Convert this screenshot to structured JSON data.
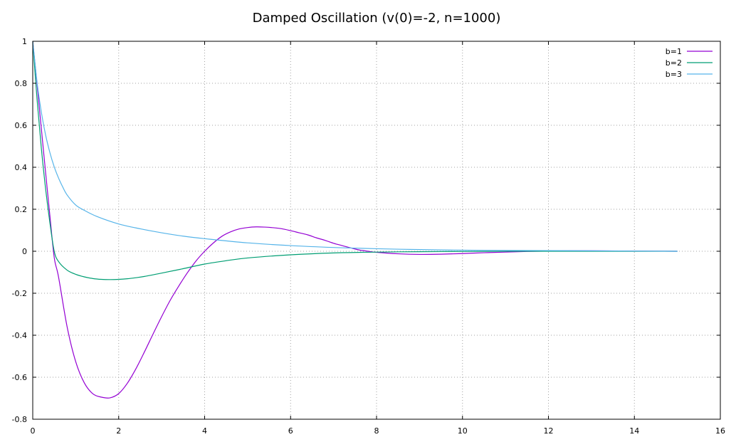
{
  "chart_data": {
    "type": "line",
    "title": "Damped Oscillation (v(0)=-2, n=1000)",
    "xlabel": "",
    "ylabel": "",
    "xlim": [
      0,
      16
    ],
    "ylim": [
      -0.8,
      1
    ],
    "xticks": [
      0,
      2,
      4,
      6,
      8,
      10,
      12,
      14,
      16
    ],
    "yticks": [
      -0.8,
      -0.6,
      -0.4,
      -0.2,
      0,
      0.2,
      0.4,
      0.6,
      0.8,
      1
    ],
    "grid": true,
    "legend_position": "top-right",
    "series": [
      {
        "name": "b=1",
        "color": "#9400d3",
        "x": [
          0,
          0.1,
          0.2,
          0.3,
          0.4,
          0.5,
          0.6,
          0.8,
          1,
          1.2,
          1.4,
          1.6,
          1.8,
          2,
          2.2,
          2.4,
          2.6,
          2.8,
          3,
          3.2,
          3.4,
          3.6,
          3.8,
          4,
          4.2,
          4.4,
          4.6,
          4.8,
          5,
          5.2,
          5.4,
          5.6,
          5.8,
          6,
          6.2,
          6.4,
          6.6,
          6.8,
          7,
          7.2,
          7.4,
          7.6,
          7.8,
          8,
          8.5,
          9,
          9.5,
          10,
          10.5,
          11,
          11.5,
          12,
          12.5,
          13,
          14,
          15
        ],
        "y": [
          1,
          0.795,
          0.584,
          0.373,
          0.167,
          -0.03,
          -0.122,
          -0.36,
          -0.526,
          -0.627,
          -0.679,
          -0.695,
          -0.698,
          -0.678,
          -0.629,
          -0.56,
          -0.479,
          -0.394,
          -0.311,
          -0.233,
          -0.165,
          -0.102,
          -0.046,
          0.0,
          0.039,
          0.071,
          0.092,
          0.106,
          0.113,
          0.116,
          0.115,
          0.112,
          0.107,
          0.098,
          0.088,
          0.078,
          0.064,
          0.052,
          0.038,
          0.027,
          0.016,
          0.006,
          0.0,
          -0.005,
          -0.012,
          -0.015,
          -0.014,
          -0.011,
          -0.007,
          -0.004,
          -0.001,
          0.001,
          0.002,
          0.002,
          0.001,
          0.0
        ]
      },
      {
        "name": "b=2",
        "color": "#009e73",
        "x": [
          0,
          0.1,
          0.2,
          0.3,
          0.4,
          0.5,
          0.6,
          0.8,
          1,
          1.2,
          1.4,
          1.6,
          1.8,
          2,
          2.2,
          2.4,
          2.6,
          3,
          3.5,
          4,
          4.5,
          5,
          6,
          7,
          8,
          9,
          10,
          11,
          12,
          13,
          14,
          15
        ],
        "y": [
          1,
          0.724,
          0.491,
          0.296,
          0.134,
          0.0,
          -0.049,
          -0.09,
          -0.11,
          -0.122,
          -0.13,
          -0.134,
          -0.135,
          -0.134,
          -0.131,
          -0.126,
          -0.12,
          -0.104,
          -0.083,
          -0.061,
          -0.045,
          -0.032,
          -0.017,
          -0.008,
          -0.004,
          -0.002,
          -0.001,
          0.0,
          0.0,
          0.0,
          0.0,
          0.0
        ]
      },
      {
        "name": "b=3",
        "color": "#56b4e9",
        "x": [
          0,
          0.1,
          0.2,
          0.3,
          0.4,
          0.5,
          0.6,
          0.7,
          0.8,
          1,
          1.2,
          1.5,
          2,
          2.5,
          3,
          3.5,
          4,
          5,
          6,
          7,
          8,
          9,
          10,
          11,
          12,
          13,
          14,
          15
        ],
        "y": [
          1,
          0.806,
          0.662,
          0.553,
          0.469,
          0.402,
          0.349,
          0.305,
          0.268,
          0.22,
          0.195,
          0.165,
          0.13,
          0.107,
          0.088,
          0.072,
          0.06,
          0.04,
          0.027,
          0.018,
          0.012,
          0.008,
          0.005,
          0.004,
          0.003,
          0.002,
          0.001,
          0.0
        ]
      }
    ]
  }
}
